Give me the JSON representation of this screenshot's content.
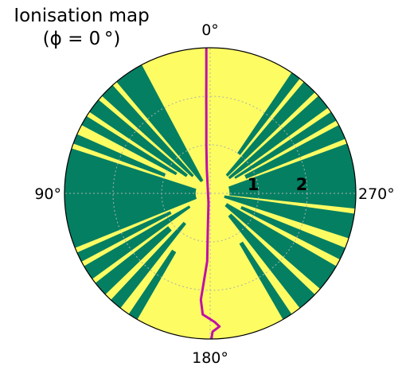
{
  "title": {
    "line1": "Ionisation map",
    "line2": "(ϕ = 0 °)"
  },
  "chart_data": {
    "type": "polar-heatmap",
    "title": "Ionisation map (ϕ = 0 °)",
    "angular_ticks": [
      {
        "angle_deg": 0,
        "label": "0°"
      },
      {
        "angle_deg": 90,
        "label": "90°"
      },
      {
        "angle_deg": 180,
        "label": "180°"
      },
      {
        "angle_deg": 270,
        "label": "270°"
      }
    ],
    "radial_rings": [
      1,
      2
    ],
    "radial_ring_labels": [
      "1",
      "2"
    ],
    "r_max": 3,
    "colors": {
      "ionised": "#fdfc63",
      "neutral": "#047f62",
      "boundary_curve": "#c010a8",
      "grid": "#b0b0b0"
    },
    "neutral_wedges": [
      {
        "from": 28,
        "to": 40,
        "r0": 0.3,
        "r1": 3.0
      },
      {
        "from": 42,
        "to": 48,
        "r0": 0.5,
        "r1": 3.0
      },
      {
        "from": 50,
        "to": 56,
        "r0": 0.6,
        "r1": 3.0
      },
      {
        "from": 58,
        "to": 62,
        "r0": 0.8,
        "r1": 3.0
      },
      {
        "from": 66,
        "to": 70,
        "r0": 1.0,
        "r1": 3.0
      },
      {
        "from": 72,
        "to": 112,
        "r0": 0.3,
        "r1": 3.0
      },
      {
        "from": 114,
        "to": 118,
        "r0": 0.9,
        "r1": 3.0
      },
      {
        "from": 120,
        "to": 126,
        "r0": 0.5,
        "r1": 3.0
      },
      {
        "from": 128,
        "to": 134,
        "r0": 1.1,
        "r1": 3.0
      },
      {
        "from": 137,
        "to": 142,
        "r0": 0.8,
        "r1": 3.0
      },
      {
        "from": 146,
        "to": 150,
        "r0": 1.4,
        "r1": 3.0
      },
      {
        "from": 210,
        "to": 214,
        "r0": 1.2,
        "r1": 3.0
      },
      {
        "from": 218,
        "to": 226,
        "r0": 0.6,
        "r1": 3.0
      },
      {
        "from": 229,
        "to": 240,
        "r0": 0.4,
        "r1": 3.0
      },
      {
        "from": 243,
        "to": 248,
        "r0": 0.7,
        "r1": 3.0
      },
      {
        "from": 252,
        "to": 262,
        "r0": 0.3,
        "r1": 3.0
      },
      {
        "from": 264,
        "to": 290,
        "r0": 0.4,
        "r1": 3.0
      },
      {
        "from": 292,
        "to": 298,
        "r0": 0.8,
        "r1": 3.0
      },
      {
        "from": 300,
        "to": 304,
        "r0": 0.6,
        "r1": 3.0
      },
      {
        "from": 306,
        "to": 312,
        "r0": 0.5,
        "r1": 3.0
      },
      {
        "from": 314,
        "to": 320,
        "r0": 0.5,
        "r1": 3.0
      },
      {
        "from": 322,
        "to": 326,
        "r0": 1.0,
        "r1": 3.0
      }
    ],
    "boundary_curve": [
      {
        "angle_deg": 1.5,
        "r": 3.0
      },
      {
        "angle_deg": 1.8,
        "r": 2.5
      },
      {
        "angle_deg": 2.3,
        "r": 2.0
      },
      {
        "angle_deg": 3.0,
        "r": 1.5
      },
      {
        "angle_deg": 4.5,
        "r": 1.0
      },
      {
        "angle_deg": 8.0,
        "r": 0.5
      },
      {
        "angle_deg": 20.0,
        "r": 0.15
      },
      {
        "angle_deg": 170.0,
        "r": 0.2
      },
      {
        "angle_deg": 176.5,
        "r": 0.8
      },
      {
        "angle_deg": 177.5,
        "r": 1.4
      },
      {
        "angle_deg": 176.0,
        "r": 1.8
      },
      {
        "angle_deg": 175.0,
        "r": 2.2
      },
      {
        "angle_deg": 176.5,
        "r": 2.5
      },
      {
        "angle_deg": 182.0,
        "r": 2.65
      },
      {
        "angle_deg": 184.0,
        "r": 2.75
      },
      {
        "angle_deg": 181.0,
        "r": 2.85
      },
      {
        "angle_deg": 180.5,
        "r": 3.0
      }
    ]
  }
}
